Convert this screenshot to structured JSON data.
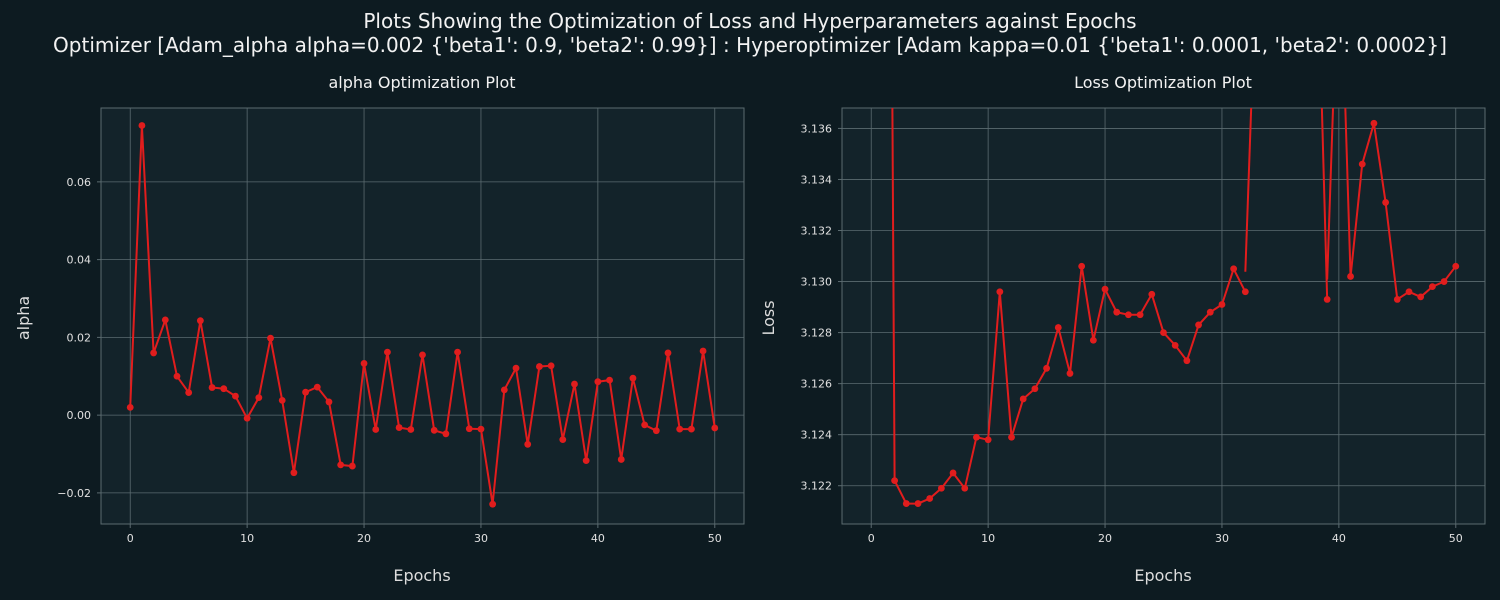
{
  "suptitle": {
    "line1": "Plots Showing the Optimization of Loss and Hyperparameters against Epochs",
    "line2": "Optimizer [Adam_alpha alpha=0.002 {'beta1': 0.9, 'beta2': 0.99}] : Hyperoptimizer [Adam kappa=0.01 {'beta1': 0.0001, 'beta2': 0.0002}]"
  },
  "colors": {
    "background": "#0d1b21",
    "plot_bg": "#13232a",
    "line": "#e11d1d",
    "grid": "#5b6b70",
    "spine": "#5b6b70"
  },
  "chart_data": [
    {
      "type": "line",
      "title": "alpha Optimization Plot",
      "xlabel": "Epochs",
      "ylabel": "alpha",
      "xlim": [
        -2.5,
        52.5
      ],
      "ylim": [
        -0.028,
        0.079
      ],
      "xticks": [
        0,
        10,
        20,
        30,
        40,
        50
      ],
      "yticks": [
        -0.02,
        0.0,
        0.02,
        0.04,
        0.06
      ],
      "ytick_labels": [
        "−0.02",
        "0.00",
        "0.02",
        "0.04",
        "0.06"
      ],
      "grid": true,
      "x": [
        0,
        1,
        2,
        3,
        4,
        5,
        6,
        7,
        8,
        9,
        10,
        11,
        12,
        13,
        14,
        15,
        16,
        17,
        18,
        19,
        20,
        21,
        22,
        23,
        24,
        25,
        26,
        27,
        28,
        29,
        30,
        31,
        32,
        33,
        34,
        35,
        36,
        37,
        38,
        39,
        40,
        41,
        42,
        43,
        44,
        45,
        46,
        47,
        48,
        49,
        50
      ],
      "values": [
        0.002,
        0.0745,
        0.016,
        0.0245,
        0.01,
        0.0058,
        0.0243,
        0.0071,
        0.0068,
        0.0049,
        -0.0008,
        0.0045,
        0.0198,
        0.0038,
        -0.0148,
        0.0059,
        0.0072,
        0.0034,
        -0.0128,
        -0.0131,
        0.0133,
        -0.0037,
        0.0162,
        -0.0032,
        -0.0037,
        0.0155,
        -0.0039,
        -0.0048,
        0.0162,
        -0.0035,
        -0.0036,
        -0.0229,
        0.0065,
        0.0121,
        -0.0075,
        0.0125,
        0.0127,
        -0.0063,
        0.008,
        -0.0117,
        0.0086,
        0.009,
        -0.0114,
        0.0095,
        -0.0025,
        -0.004,
        0.016,
        -0.0036,
        -0.0036,
        0.0165,
        -0.0033
      ]
    },
    {
      "type": "line",
      "title": "Loss Optimization Plot",
      "xlabel": "Epochs",
      "ylabel": "Loss",
      "xlim": [
        -2.5,
        52.5
      ],
      "ylim": [
        3.1205,
        3.1368
      ],
      "xticks": [
        0,
        10,
        20,
        30,
        40,
        50
      ],
      "yticks": [
        3.122,
        3.124,
        3.126,
        3.128,
        3.13,
        3.132,
        3.134,
        3.136
      ],
      "ytick_labels": [
        "3.122",
        "3.124",
        "3.126",
        "3.128",
        "3.130",
        "3.132",
        "3.134",
        "3.136"
      ],
      "grid": true,
      "x": [
        2,
        3,
        4,
        5,
        6,
        7,
        8,
        9,
        10,
        11,
        12,
        13,
        14,
        15,
        16,
        17,
        18,
        19,
        20,
        21,
        22,
        23,
        24,
        25,
        26,
        27,
        28,
        29,
        30,
        31,
        32,
        39,
        41,
        42,
        43,
        44,
        45,
        46,
        47,
        48,
        49,
        50
      ],
      "x_full": [
        0,
        1,
        2,
        3,
        4,
        5,
        6,
        7,
        8,
        9,
        10,
        11,
        12,
        13,
        14,
        15,
        16,
        17,
        18,
        19,
        20,
        21,
        22,
        23,
        24,
        25,
        26,
        27,
        28,
        29,
        30,
        31,
        32,
        33,
        34,
        35,
        36,
        37,
        38,
        39,
        40,
        41,
        42,
        43,
        44,
        45,
        46,
        47,
        48,
        49,
        50
      ],
      "values": [
        3.1222,
        3.1213,
        3.1213,
        3.1215,
        3.1219,
        3.1225,
        3.1219,
        3.1239,
        3.1238,
        3.1296,
        3.1239,
        3.1254,
        3.1258,
        3.1266,
        3.1282,
        3.1264,
        3.1306,
        3.1277,
        3.1297,
        3.1288,
        3.1287,
        3.1287,
        3.1295,
        3.128,
        3.1275,
        3.1269,
        3.1283,
        3.1288,
        3.1291,
        3.1305,
        3.1296,
        3.1293,
        3.1302,
        3.1346,
        3.1362,
        3.1331,
        3.1293,
        3.1296,
        3.1294,
        3.1298,
        3.13,
        3.1306
      ],
      "offscale_segments": [
        [
          1.8,
          3.1368,
          2,
          3.1222
        ],
        [
          32,
          3.1296,
          32.5,
          3.1368
        ],
        [
          38.5,
          3.1368,
          39,
          3.1293
        ],
        [
          39,
          3.1293,
          39.5,
          3.1368
        ],
        [
          40.5,
          3.1368,
          41,
          3.1302
        ]
      ]
    }
  ]
}
